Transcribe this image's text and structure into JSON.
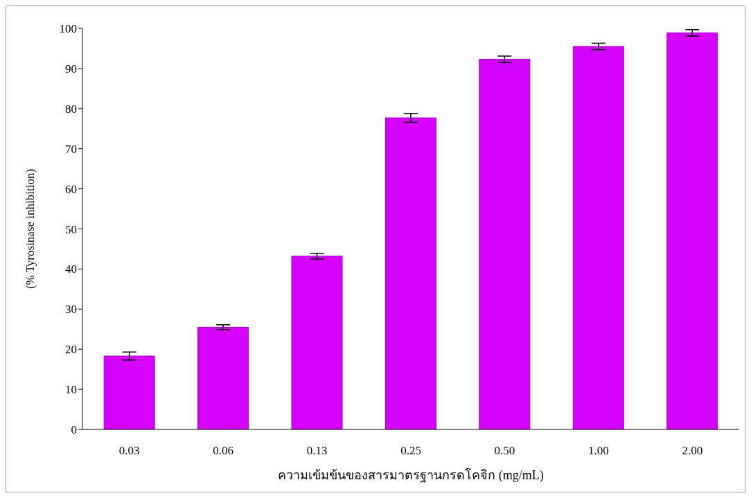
{
  "chart_data": {
    "type": "bar",
    "xlabel": "ความเข้มข้นของสารมาตรฐานกรดโคจิก (mg/mL)",
    "ylabel": "(% Tyrosinase inhibition)",
    "categories": [
      "0.03",
      "0.06",
      "0.13",
      "0.25",
      "0.50",
      "1.00",
      "2.00"
    ],
    "values": [
      18.3,
      25.5,
      43.2,
      77.7,
      92.3,
      95.5,
      98.9
    ],
    "errors": [
      1.0,
      0.6,
      0.7,
      1.1,
      0.8,
      0.8,
      0.8
    ],
    "color": "#d600ff",
    "ylim": [
      0,
      100
    ],
    "yticks": [
      0,
      10,
      20,
      30,
      40,
      50,
      60,
      70,
      80,
      90,
      100
    ],
    "grid": false,
    "legend": false
  }
}
